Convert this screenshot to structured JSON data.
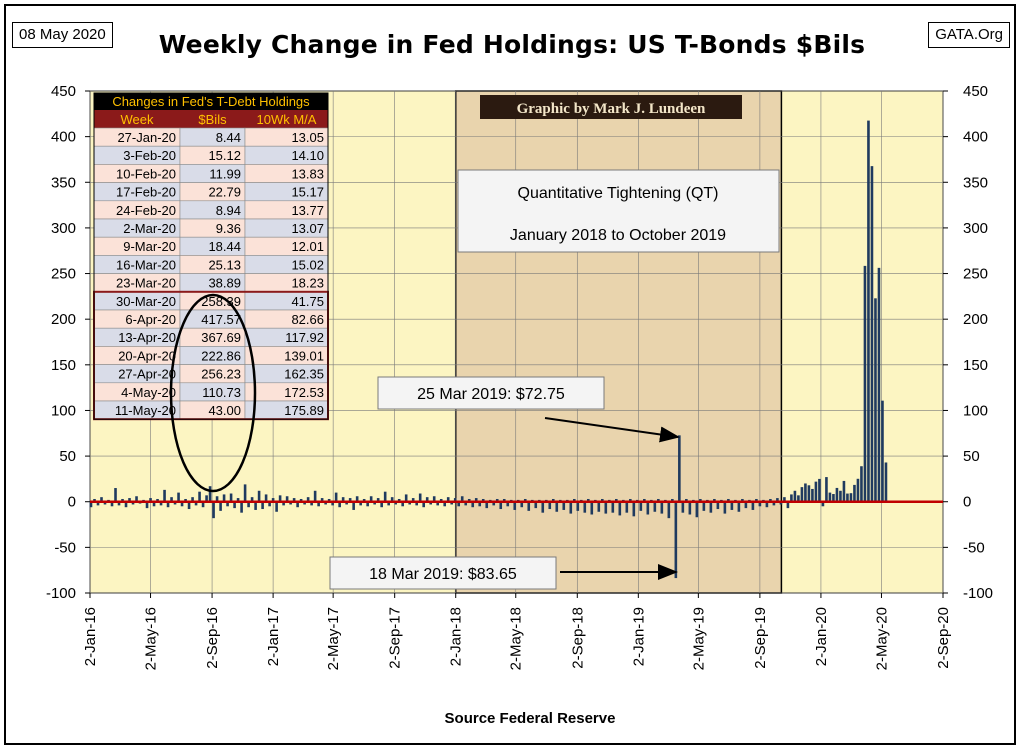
{
  "header": {
    "date": "08 May 2020",
    "site": "GATA.Org",
    "title": "Weekly Change in Fed Holdings: US T-Bonds $Bils"
  },
  "credit": "Graphic by Mark J. Lundeen",
  "qt_box": {
    "line1": "Quantitative Tightening (QT)",
    "line2": "January 2018 to October 2019"
  },
  "annotations": [
    {
      "text": "25 Mar 2019: $72.75"
    },
    {
      "text": "18 Mar 2019: $83.65"
    }
  ],
  "source": "Source Federal Reserve",
  "table": {
    "title": "Changes in Fed's T-Debt Holdings",
    "headers": [
      "Week",
      "$Bils",
      "10Wk M/A"
    ],
    "rows": [
      [
        "27-Jan-20",
        "8.44",
        "13.05"
      ],
      [
        "3-Feb-20",
        "15.12",
        "14.10"
      ],
      [
        "10-Feb-20",
        "11.99",
        "13.83"
      ],
      [
        "17-Feb-20",
        "22.79",
        "15.17"
      ],
      [
        "24-Feb-20",
        "8.94",
        "13.77"
      ],
      [
        "2-Mar-20",
        "9.36",
        "13.07"
      ],
      [
        "9-Mar-20",
        "18.44",
        "12.01"
      ],
      [
        "16-Mar-20",
        "25.13",
        "15.02"
      ],
      [
        "23-Mar-20",
        "38.89",
        "18.23"
      ],
      [
        "30-Mar-20",
        "258.39",
        "41.75"
      ],
      [
        "6-Apr-20",
        "417.57",
        "82.66"
      ],
      [
        "13-Apr-20",
        "367.69",
        "117.92"
      ],
      [
        "20-Apr-20",
        "222.86",
        "139.01"
      ],
      [
        "27-Apr-20",
        "256.23",
        "162.35"
      ],
      [
        "4-May-20",
        "110.73",
        "172.53"
      ],
      [
        "11-May-20",
        "43.00",
        "175.89"
      ]
    ]
  },
  "colors": {
    "plot_bg": "#fcf5c2",
    "qt_bg": "#e9d4ad",
    "bar": "#1f3a5f",
    "zero_line": "#c00000",
    "table_header_bg": "#000000",
    "table_header_text": "#ffc000",
    "table_colhdr_bg": "#8b1a1a",
    "table_row_a": "#fbe2d8",
    "table_row_b": "#d9dce8"
  },
  "chart_data": {
    "type": "bar",
    "title": "Weekly Change in Fed Holdings: US T-Bonds $Bils",
    "xlabel": "Source Federal Reserve",
    "ylabel": "",
    "ylim": [
      -100,
      450
    ],
    "yticks": [
      450,
      400,
      350,
      300,
      250,
      200,
      150,
      100,
      50,
      0,
      -50,
      -100
    ],
    "xlim": [
      "2016-01-02",
      "2020-09-02"
    ],
    "xtick_labels": [
      "2-Jan-16",
      "2-May-16",
      "2-Sep-16",
      "2-Jan-17",
      "2-May-17",
      "2-Sep-17",
      "2-Jan-18",
      "2-May-18",
      "2-Sep-18",
      "2-Jan-19",
      "2-May-19",
      "2-Sep-19",
      "2-Jan-20",
      "2-May-20",
      "2-Sep-20"
    ],
    "shaded_region": {
      "label": "Quantitative Tightening (QT)",
      "start": "2018-01-02",
      "end": "2019-10-15"
    },
    "grid": true,
    "series": [
      {
        "values": [
          [
            "2016-01-04",
            -6
          ],
          [
            "2016-01-11",
            3
          ],
          [
            "2016-01-18",
            -4
          ],
          [
            "2016-01-25",
            5
          ],
          [
            "2016-02-01",
            -3
          ],
          [
            "2016-02-08",
            2
          ],
          [
            "2016-02-15",
            -5
          ],
          [
            "2016-02-22",
            15
          ],
          [
            "2016-02-29",
            -4
          ],
          [
            "2016-03-07",
            3
          ],
          [
            "2016-03-14",
            -6
          ],
          [
            "2016-03-21",
            4
          ],
          [
            "2016-03-28",
            -3
          ],
          [
            "2016-04-04",
            6
          ],
          [
            "2016-04-11",
            -2
          ],
          [
            "2016-04-18",
            2
          ],
          [
            "2016-04-25",
            -7
          ],
          [
            "2016-05-02",
            4
          ],
          [
            "2016-05-09",
            -5
          ],
          [
            "2016-05-16",
            3
          ],
          [
            "2016-05-23",
            -4
          ],
          [
            "2016-05-30",
            13
          ],
          [
            "2016-06-06",
            -6
          ],
          [
            "2016-06-13",
            5
          ],
          [
            "2016-06-20",
            -3
          ],
          [
            "2016-06-27",
            10
          ],
          [
            "2016-07-04",
            -5
          ],
          [
            "2016-07-11",
            3
          ],
          [
            "2016-07-18",
            -8
          ],
          [
            "2016-07-25",
            5
          ],
          [
            "2016-08-01",
            -4
          ],
          [
            "2016-08-08",
            11
          ],
          [
            "2016-08-15",
            -6
          ],
          [
            "2016-08-22",
            7
          ],
          [
            "2016-08-29",
            17
          ],
          [
            "2016-09-05",
            -18
          ],
          [
            "2016-09-12",
            6
          ],
          [
            "2016-09-19",
            -10
          ],
          [
            "2016-09-26",
            8
          ],
          [
            "2016-10-03",
            -5
          ],
          [
            "2016-10-10",
            9
          ],
          [
            "2016-10-17",
            -7
          ],
          [
            "2016-10-24",
            4
          ],
          [
            "2016-10-31",
            -12
          ],
          [
            "2016-11-07",
            19
          ],
          [
            "2016-11-14",
            -6
          ],
          [
            "2016-11-21",
            5
          ],
          [
            "2016-11-28",
            -9
          ],
          [
            "2016-12-05",
            12
          ],
          [
            "2016-12-12",
            -8
          ],
          [
            "2016-12-19",
            8
          ],
          [
            "2016-12-26",
            -5
          ],
          [
            "2017-01-02",
            4
          ],
          [
            "2017-01-09",
            -11
          ],
          [
            "2017-01-16",
            7
          ],
          [
            "2017-01-23",
            -4
          ],
          [
            "2017-01-30",
            6
          ],
          [
            "2017-02-06",
            -3
          ],
          [
            "2017-02-13",
            4
          ],
          [
            "2017-02-20",
            -6
          ],
          [
            "2017-02-27",
            3
          ],
          [
            "2017-03-06",
            -3
          ],
          [
            "2017-03-13",
            5
          ],
          [
            "2017-03-20",
            -4
          ],
          [
            "2017-03-27",
            12
          ],
          [
            "2017-04-03",
            -5
          ],
          [
            "2017-04-10",
            4
          ],
          [
            "2017-04-17",
            -3
          ],
          [
            "2017-04-24",
            3
          ],
          [
            "2017-05-01",
            -4
          ],
          [
            "2017-05-08",
            10
          ],
          [
            "2017-05-15",
            -6
          ],
          [
            "2017-05-22",
            5
          ],
          [
            "2017-05-29",
            -3
          ],
          [
            "2017-06-05",
            4
          ],
          [
            "2017-06-12",
            -9
          ],
          [
            "2017-06-19",
            6
          ],
          [
            "2017-06-26",
            -4
          ],
          [
            "2017-07-03",
            3
          ],
          [
            "2017-07-10",
            -5
          ],
          [
            "2017-07-17",
            6
          ],
          [
            "2017-07-24",
            -3
          ],
          [
            "2017-07-31",
            4
          ],
          [
            "2017-08-07",
            -6
          ],
          [
            "2017-08-14",
            11
          ],
          [
            "2017-08-21",
            -4
          ],
          [
            "2017-08-28",
            5
          ],
          [
            "2017-09-04",
            -3
          ],
          [
            "2017-09-11",
            3
          ],
          [
            "2017-09-18",
            -5
          ],
          [
            "2017-09-25",
            8
          ],
          [
            "2017-10-02",
            -3
          ],
          [
            "2017-10-09",
            4
          ],
          [
            "2017-10-16",
            -4
          ],
          [
            "2017-10-23",
            9
          ],
          [
            "2017-10-30",
            -6
          ],
          [
            "2017-11-06",
            5
          ],
          [
            "2017-11-13",
            -3
          ],
          [
            "2017-11-20",
            6
          ],
          [
            "2017-11-27",
            -4
          ],
          [
            "2017-12-04",
            3
          ],
          [
            "2017-12-11",
            -5
          ],
          [
            "2017-12-18",
            5
          ],
          [
            "2017-12-25",
            -3
          ],
          [
            "2018-01-01",
            4
          ],
          [
            "2018-01-08",
            -5
          ],
          [
            "2018-01-15",
            6
          ],
          [
            "2018-01-22",
            -4
          ],
          [
            "2018-01-29",
            3
          ],
          [
            "2018-02-05",
            -6
          ],
          [
            "2018-02-12",
            4
          ],
          [
            "2018-02-19",
            -5
          ],
          [
            "2018-02-26",
            3
          ],
          [
            "2018-03-05",
            -7
          ],
          [
            "2018-03-12",
            2
          ],
          [
            "2018-03-19",
            -4
          ],
          [
            "2018-03-26",
            3
          ],
          [
            "2018-04-02",
            -8
          ],
          [
            "2018-04-09",
            3
          ],
          [
            "2018-04-16",
            -5
          ],
          [
            "2018-04-23",
            2
          ],
          [
            "2018-04-30",
            -9
          ],
          [
            "2018-05-07",
            2
          ],
          [
            "2018-05-14",
            -6
          ],
          [
            "2018-05-21",
            3
          ],
          [
            "2018-05-28",
            -10
          ],
          [
            "2018-06-04",
            2
          ],
          [
            "2018-06-11",
            -7
          ],
          [
            "2018-06-18",
            2
          ],
          [
            "2018-06-25",
            -12
          ],
          [
            "2018-07-02",
            2
          ],
          [
            "2018-07-09",
            -8
          ],
          [
            "2018-07-16",
            3
          ],
          [
            "2018-07-23",
            -11
          ],
          [
            "2018-07-30",
            2
          ],
          [
            "2018-08-06",
            -9
          ],
          [
            "2018-08-13",
            2
          ],
          [
            "2018-08-20",
            -13
          ],
          [
            "2018-08-27",
            3
          ],
          [
            "2018-09-03",
            -10
          ],
          [
            "2018-09-10",
            2
          ],
          [
            "2018-09-17",
            -12
          ],
          [
            "2018-09-24",
            3
          ],
          [
            "2018-10-01",
            -14
          ],
          [
            "2018-10-08",
            2
          ],
          [
            "2018-10-15",
            -11
          ],
          [
            "2018-10-22",
            3
          ],
          [
            "2018-10-29",
            -13
          ],
          [
            "2018-11-05",
            2
          ],
          [
            "2018-11-12",
            -12
          ],
          [
            "2018-11-19",
            3
          ],
          [
            "2018-11-26",
            -15
          ],
          [
            "2018-12-03",
            2
          ],
          [
            "2018-12-10",
            -12
          ],
          [
            "2018-12-17",
            3
          ],
          [
            "2018-12-24",
            -16
          ],
          [
            "2018-12-31",
            2
          ],
          [
            "2019-01-07",
            -10
          ],
          [
            "2019-01-14",
            3
          ],
          [
            "2019-01-21",
            -14
          ],
          [
            "2019-01-28",
            2
          ],
          [
            "2019-02-04",
            -11
          ],
          [
            "2019-02-11",
            3
          ],
          [
            "2019-02-18",
            -13
          ],
          [
            "2019-02-25",
            2
          ],
          [
            "2019-03-04",
            -18
          ],
          [
            "2019-03-11",
            3
          ],
          [
            "2019-03-18",
            -83.65
          ],
          [
            "2019-03-25",
            72.75
          ],
          [
            "2019-04-01",
            -12
          ],
          [
            "2019-04-08",
            3
          ],
          [
            "2019-04-15",
            -14
          ],
          [
            "2019-04-22",
            2
          ],
          [
            "2019-04-29",
            -17
          ],
          [
            "2019-05-06",
            3
          ],
          [
            "2019-05-13",
            -10
          ],
          [
            "2019-05-20",
            2
          ],
          [
            "2019-05-27",
            -12
          ],
          [
            "2019-06-03",
            3
          ],
          [
            "2019-06-10",
            -8
          ],
          [
            "2019-06-17",
            2
          ],
          [
            "2019-06-24",
            -13
          ],
          [
            "2019-07-01",
            3
          ],
          [
            "2019-07-08",
            -9
          ],
          [
            "2019-07-15",
            2
          ],
          [
            "2019-07-22",
            -11
          ],
          [
            "2019-07-29",
            3
          ],
          [
            "2019-08-05",
            -7
          ],
          [
            "2019-08-12",
            2
          ],
          [
            "2019-08-19",
            -9
          ],
          [
            "2019-08-26",
            3
          ],
          [
            "2019-09-02",
            -5
          ],
          [
            "2019-09-09",
            2
          ],
          [
            "2019-09-16",
            -6
          ],
          [
            "2019-09-23",
            3
          ],
          [
            "2019-09-30",
            -4
          ],
          [
            "2019-10-07",
            4
          ],
          [
            "2019-10-14",
            -3
          ],
          [
            "2019-10-21",
            5
          ],
          [
            "2019-10-28",
            -7
          ],
          [
            "2019-11-04",
            8
          ],
          [
            "2019-11-11",
            12
          ],
          [
            "2019-11-18",
            7
          ],
          [
            "2019-11-25",
            16
          ],
          [
            "2019-12-02",
            20
          ],
          [
            "2019-12-09",
            18
          ],
          [
            "2019-12-16",
            14
          ],
          [
            "2019-12-23",
            22
          ],
          [
            "2019-12-30",
            25
          ],
          [
            "2020-01-06",
            -5
          ],
          [
            "2020-01-13",
            27
          ],
          [
            "2020-01-20",
            10
          ],
          [
            "2020-01-27",
            8.44
          ],
          [
            "2020-02-03",
            15.12
          ],
          [
            "2020-02-10",
            11.99
          ],
          [
            "2020-02-17",
            22.79
          ],
          [
            "2020-02-24",
            8.94
          ],
          [
            "2020-03-02",
            9.36
          ],
          [
            "2020-03-09",
            18.44
          ],
          [
            "2020-03-16",
            25.13
          ],
          [
            "2020-03-23",
            38.89
          ],
          [
            "2020-03-30",
            258.39
          ],
          [
            "2020-04-06",
            417.57
          ],
          [
            "2020-04-13",
            367.69
          ],
          [
            "2020-04-20",
            222.86
          ],
          [
            "2020-04-27",
            256.23
          ],
          [
            "2020-05-04",
            110.73
          ],
          [
            "2020-05-11",
            43.0
          ]
        ]
      }
    ]
  }
}
